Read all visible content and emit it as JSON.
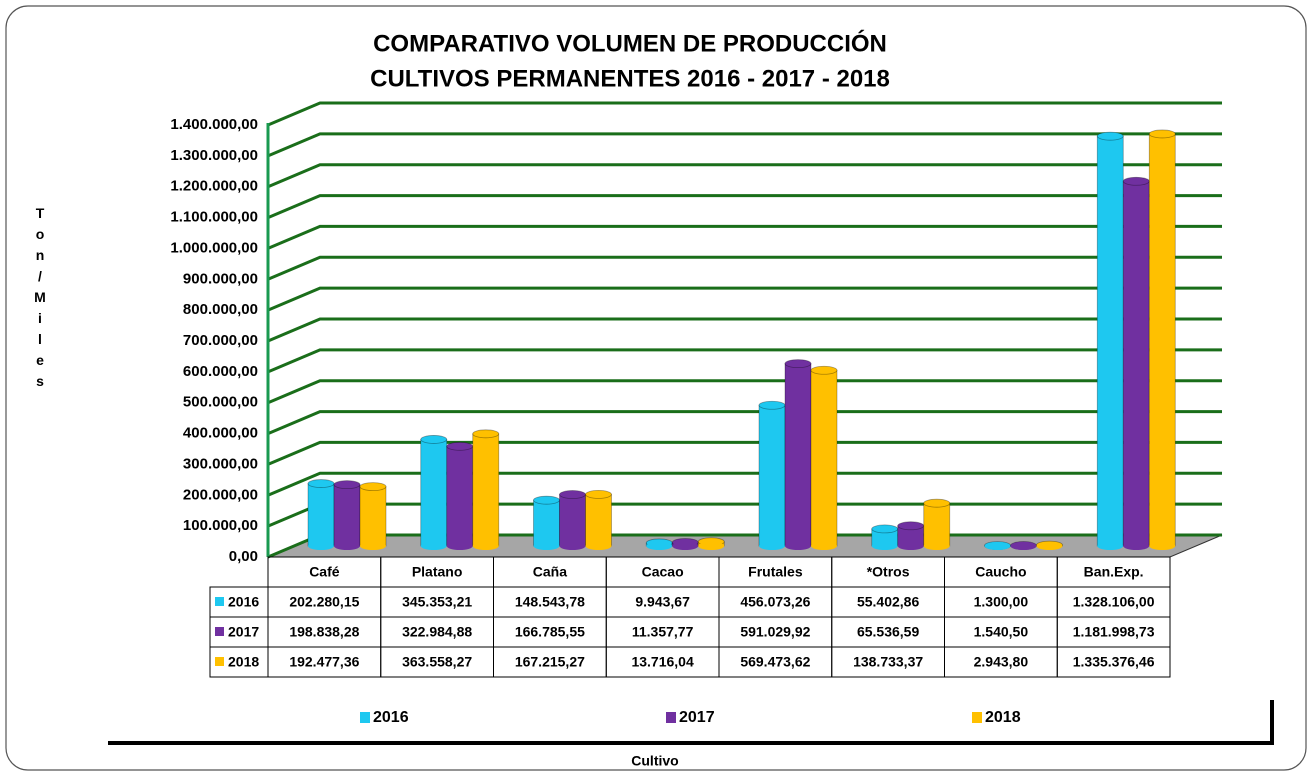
{
  "chart_data": {
    "type": "bar3d",
    "title": "COMPARATIVO VOLUMEN DE PRODUCCIÓN",
    "subtitle": "CULTIVOS PERMANENTES 2016 - 2017 - 2018",
    "y_label": "Ton/Miles",
    "x_label": "Cultivo",
    "categories": [
      "Café",
      "Platano",
      "Caña",
      "Cacao",
      "Frutales",
      "*Otros",
      "Caucho",
      "Ban.Exp."
    ],
    "series": [
      {
        "name": "2016",
        "color": "#1ec8f0",
        "values": [
          202280.15,
          345353.21,
          148543.78,
          9943.67,
          456073.26,
          55402.86,
          1300.0,
          1328106.0
        ],
        "value_labels": [
          "202.280,15",
          "345.353,21",
          "148.543,78",
          "9.943,67",
          "456.073,26",
          "55.402,86",
          "1.300,00",
          "1.328.106,00"
        ]
      },
      {
        "name": "2017",
        "color": "#7030a0",
        "values": [
          198838.28,
          322984.88,
          166785.55,
          11357.77,
          591029.92,
          65536.59,
          1540.5,
          1181998.73
        ],
        "value_labels": [
          "198.838,28",
          "322.984,88",
          "166.785,55",
          "11.357,77",
          "591.029,92",
          "65.536,59",
          "1.540,50",
          "1.181.998,73"
        ]
      },
      {
        "name": "2018",
        "color": "#ffc000",
        "values": [
          192477.36,
          363558.27,
          167215.27,
          13716.04,
          569473.62,
          138733.37,
          2943.8,
          1335376.46
        ],
        "value_labels": [
          "192.477,36",
          "363.558,27",
          "167.215,27",
          "13.716,04",
          "569.473,62",
          "138.733,37",
          "2.943,80",
          "1.335.376,46"
        ]
      }
    ],
    "ylim": [
      0,
      1400000
    ],
    "yticks": [
      {
        "value": 0,
        "label": "0,00"
      },
      {
        "value": 100000,
        "label": "100.000,00"
      },
      {
        "value": 200000,
        "label": "200.000,00"
      },
      {
        "value": 300000,
        "label": "300.000,00"
      },
      {
        "value": 400000,
        "label": "400.000,00"
      },
      {
        "value": 500000,
        "label": "500.000,00"
      },
      {
        "value": 600000,
        "label": "600.000,00"
      },
      {
        "value": 700000,
        "label": "700.000,00"
      },
      {
        "value": 800000,
        "label": "800.000,00"
      },
      {
        "value": 900000,
        "label": "900.000,00"
      },
      {
        "value": 1000000,
        "label": "1.000.000,00"
      },
      {
        "value": 1100000,
        "label": "1.100.000,00"
      },
      {
        "value": 1200000,
        "label": "1.200.000,00"
      },
      {
        "value": 1300000,
        "label": "1.300.000,00"
      },
      {
        "value": 1400000,
        "label": "1.400.000,00"
      }
    ],
    "grid": true,
    "grid_color": "#1a6e1a",
    "floor_color": "#a6a6a6"
  }
}
